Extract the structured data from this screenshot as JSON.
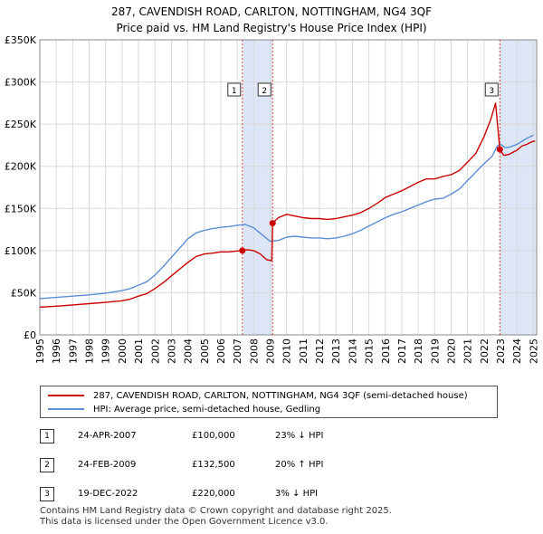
{
  "header": {
    "title": "287, CAVENDISH ROAD, CARLTON, NOTTINGHAM, NG4 3QF",
    "subtitle": "Price paid vs. HM Land Registry's House Price Index (HPI)"
  },
  "chart_data": {
    "type": "line",
    "title": "287, CAVENDISH ROAD, CARLTON, NOTTINGHAM, NG4 3QF",
    "subtitle": "Price paid vs. HM Land Registry's House Price Index (HPI)",
    "xlabel": "",
    "ylabel": "",
    "xlim": [
      1995,
      2025.2
    ],
    "ylim": [
      0,
      350000
    ],
    "grid": true,
    "ytick_values": [
      0,
      50000,
      100000,
      150000,
      200000,
      250000,
      300000,
      350000
    ],
    "ytick_labels": [
      "£0",
      "£50K",
      "£100K",
      "£150K",
      "£200K",
      "£250K",
      "£300K",
      "£350K"
    ],
    "xtick_values": [
      1995,
      1996,
      1997,
      1998,
      1999,
      2000,
      2001,
      2002,
      2003,
      2004,
      2005,
      2006,
      2007,
      2008,
      2009,
      2010,
      2011,
      2012,
      2013,
      2014,
      2015,
      2016,
      2017,
      2018,
      2019,
      2020,
      2021,
      2022,
      2023,
      2024,
      2025
    ],
    "xtick_labels": [
      "1995",
      "1996",
      "1997",
      "1998",
      "1999",
      "2000",
      "2001",
      "2002",
      "2003",
      "2004",
      "2005",
      "2006",
      "2007",
      "2008",
      "2009",
      "2010",
      "2011",
      "2012",
      "2013",
      "2014",
      "2015",
      "2016",
      "2017",
      "2018",
      "2019",
      "2020",
      "2021",
      "2022",
      "2023",
      "2024",
      "2025"
    ],
    "shaded_periods": [
      {
        "from": 2007.31,
        "to": 2009.15
      },
      {
        "from": 2022.96,
        "to": 2025.2
      }
    ],
    "series": [
      {
        "name": "287, CAVENDISH ROAD, CARLTON, NOTTINGHAM, NG4 3QF (semi-detached house)",
        "color": "#cc0000",
        "x": [
          1995.0,
          1996.0,
          1997.0,
          1998.0,
          1999.0,
          2000.0,
          2000.5,
          2001.0,
          2001.5,
          2002.0,
          2002.5,
          2003.0,
          2003.5,
          2004.0,
          2004.5,
          2005.0,
          2005.5,
          2006.0,
          2006.5,
          2007.0,
          2007.31,
          2007.6,
          2008.0,
          2008.4,
          2008.8,
          2009.1,
          2009.15,
          2009.5,
          2010.0,
          2010.5,
          2011.0,
          2011.5,
          2012.0,
          2012.5,
          2013.0,
          2013.5,
          2014.0,
          2014.5,
          2015.0,
          2015.5,
          2016.0,
          2016.5,
          2017.0,
          2017.5,
          2018.0,
          2018.5,
          2019.0,
          2019.5,
          2020.0,
          2020.5,
          2021.0,
          2021.5,
          2022.0,
          2022.4,
          2022.7,
          2022.96,
          2023.2,
          2023.5,
          2023.8,
          2024.0,
          2024.3,
          2024.6,
          2024.9,
          2025.1
        ],
        "y": [
          33000,
          34000,
          35500,
          37000,
          38500,
          40500,
          42500,
          46000,
          49000,
          55000,
          62000,
          70000,
          78000,
          86000,
          93000,
          96000,
          97000,
          98500,
          98500,
          99500,
          100000,
          101000,
          100000,
          96000,
          89000,
          88000,
          132500,
          139000,
          143000,
          141000,
          139000,
          138000,
          138000,
          137000,
          138000,
          140000,
          142000,
          145000,
          150000,
          156000,
          163000,
          167000,
          171000,
          176000,
          181000,
          185000,
          185000,
          188000,
          190000,
          195000,
          205000,
          215000,
          235000,
          255000,
          275000,
          220000,
          213000,
          214000,
          217000,
          219000,
          224000,
          226000,
          229000,
          230000
        ]
      },
      {
        "name": "HPI: Average price, semi-detached house, Gedling",
        "color": "#5b8fd6",
        "x": [
          1995.0,
          1996.0,
          1997.0,
          1998.0,
          1999.0,
          2000.0,
          2000.5,
          2001.0,
          2001.5,
          2002.0,
          2002.5,
          2003.0,
          2003.5,
          2004.0,
          2004.5,
          2005.0,
          2005.5,
          2006.0,
          2006.5,
          2007.0,
          2007.5,
          2008.0,
          2008.5,
          2009.0,
          2009.5,
          2010.0,
          2010.5,
          2011.0,
          2011.5,
          2012.0,
          2012.5,
          2013.0,
          2013.5,
          2014.0,
          2014.5,
          2015.0,
          2015.5,
          2016.0,
          2016.5,
          2017.0,
          2017.5,
          2018.0,
          2018.5,
          2019.0,
          2019.5,
          2020.0,
          2020.5,
          2021.0,
          2021.5,
          2022.0,
          2022.5,
          2022.8,
          2023.0,
          2023.3,
          2023.6,
          2024.0,
          2024.5,
          2025.0
        ],
        "y": [
          43000,
          44500,
          46000,
          47500,
          49500,
          52500,
          55000,
          59000,
          63000,
          71000,
          81000,
          92000,
          103000,
          114000,
          121000,
          124000,
          126000,
          127500,
          128500,
          130000,
          131000,
          127000,
          119000,
          111000,
          112000,
          116000,
          117000,
          116000,
          115000,
          115000,
          114000,
          115000,
          117000,
          120000,
          124000,
          129000,
          134000,
          139000,
          143000,
          146000,
          150000,
          154000,
          158000,
          161000,
          162000,
          167000,
          173000,
          183000,
          193000,
          203000,
          212000,
          224000,
          226000,
          222000,
          223000,
          226000,
          232000,
          237000
        ]
      }
    ],
    "transactions": [
      {
        "label": "1",
        "x": 2007.31,
        "y": 100000
      },
      {
        "label": "2",
        "x": 2009.15,
        "y": 132500
      },
      {
        "label": "3",
        "x": 2022.96,
        "y": 220000
      }
    ]
  },
  "legend": {
    "property_label": "287, CAVENDISH ROAD, CARLTON, NOTTINGHAM, NG4 3QF (semi-detached house)",
    "hpi_label": "HPI: Average price, semi-detached house, Gedling"
  },
  "transactions_table": [
    {
      "num": "1",
      "date": "24-APR-2007",
      "price": "£100,000",
      "hpi": "23% ↓ HPI"
    },
    {
      "num": "2",
      "date": "24-FEB-2009",
      "price": "£132,500",
      "hpi": "20% ↑ HPI"
    },
    {
      "num": "3",
      "date": "19-DEC-2022",
      "price": "£220,000",
      "hpi": "3% ↓ HPI"
    }
  ],
  "footer": {
    "line1": "Contains HM Land Registry data © Crown copyright and database right 2025.",
    "line2": "This data is licensed under the Open Government Licence v3.0."
  },
  "colors": {
    "property": "#cc0000",
    "hpi": "#5b8fd6",
    "shade": "#dde6f7",
    "grid": "#d9d9d9"
  }
}
